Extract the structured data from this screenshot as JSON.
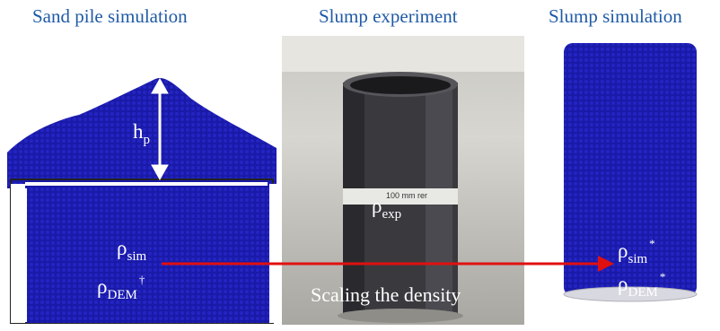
{
  "titles": {
    "sand_pile": "Sand pile simulation",
    "slump_experiment": "Slump experiment",
    "slump_simulation": "Slump simulation"
  },
  "labels": {
    "h": "h",
    "h_sub": "p",
    "rho": "ρ",
    "sim_sub": "sim",
    "dem_sub": "DEM",
    "dagger": "†",
    "exp_sub": "exp",
    "star": "*",
    "scaling": "Scaling the density",
    "tube_tag": "100 mm rer"
  },
  "colors": {
    "title": "#1f5aa6",
    "particles": "#1a1aa8",
    "arrow": "#e01010"
  }
}
